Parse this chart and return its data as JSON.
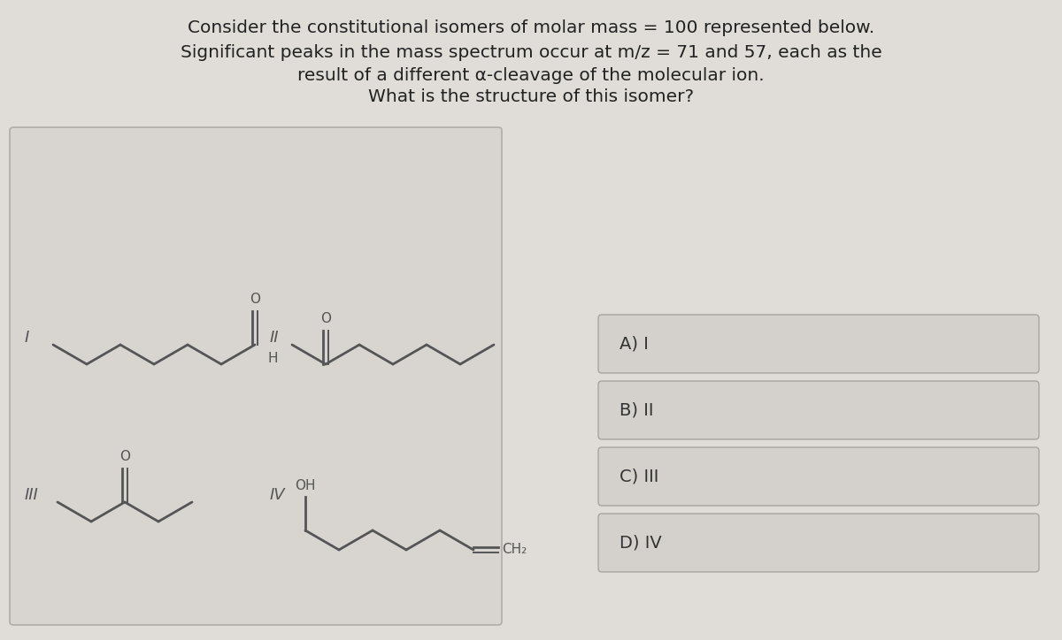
{
  "bg_color": "#e0ddd9",
  "title_lines": [
    "Consider the constitutional isomers of molar mass = 100 represented below.",
    "Significant peaks in the mass spectrum occur at m/z = 71 and 57, each as the",
    "result of a different α-cleavage of the molecular ion.",
    "What is the structure of this isomer?"
  ],
  "title_fontsize": 14.5,
  "choices": [
    "A) I",
    "B) II",
    "C) III",
    "D) IV"
  ],
  "structure_box_facecolor": "#d8d5d1",
  "structure_box_edgecolor": "#b0ada8",
  "choice_box_facecolor": "#d4d1cd",
  "choice_box_edgecolor": "#a8a5a0",
  "label_color": "#555555",
  "line_color": "#555555",
  "text_color": "#222222"
}
